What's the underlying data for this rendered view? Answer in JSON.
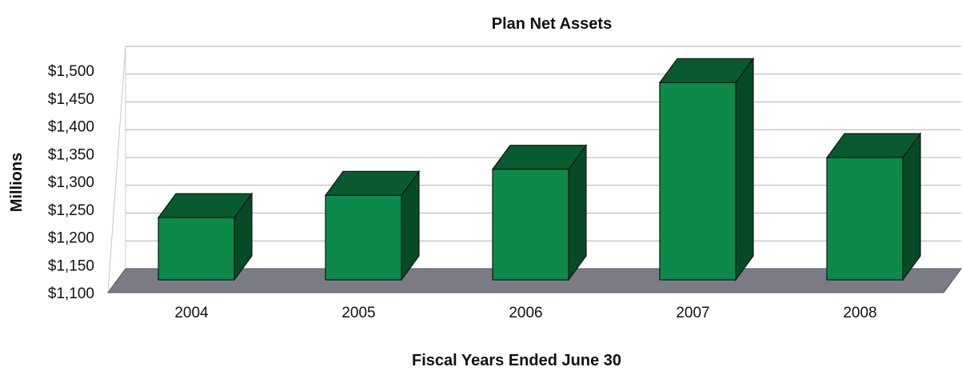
{
  "chart_data": {
    "type": "bar",
    "style": "3d",
    "title": "Plan Net Assets",
    "xlabel": "Fiscal Years Ended June 30",
    "ylabel": "Millions",
    "categories": [
      "2004",
      "2005",
      "2006",
      "2007",
      "2008"
    ],
    "values": [
      1235,
      1275,
      1322,
      1478,
      1343
    ],
    "ylim": [
      1100,
      1500
    ],
    "yticks": [
      1100,
      1150,
      1200,
      1250,
      1300,
      1350,
      1400,
      1450,
      1500
    ],
    "ytick_labels": [
      "$1,100",
      "$1,150",
      "$1,200",
      "$1,250",
      "$1,300",
      "$1,350",
      "$1,400",
      "$1,450",
      "$1,500"
    ],
    "grid": true,
    "legend": "none",
    "colors": {
      "bar_front": "#0d8a4a",
      "bar_top": "#0a5a30",
      "bar_side": "#064a26",
      "floor": "#7b7b86",
      "grid": "#b0b0b0"
    }
  }
}
